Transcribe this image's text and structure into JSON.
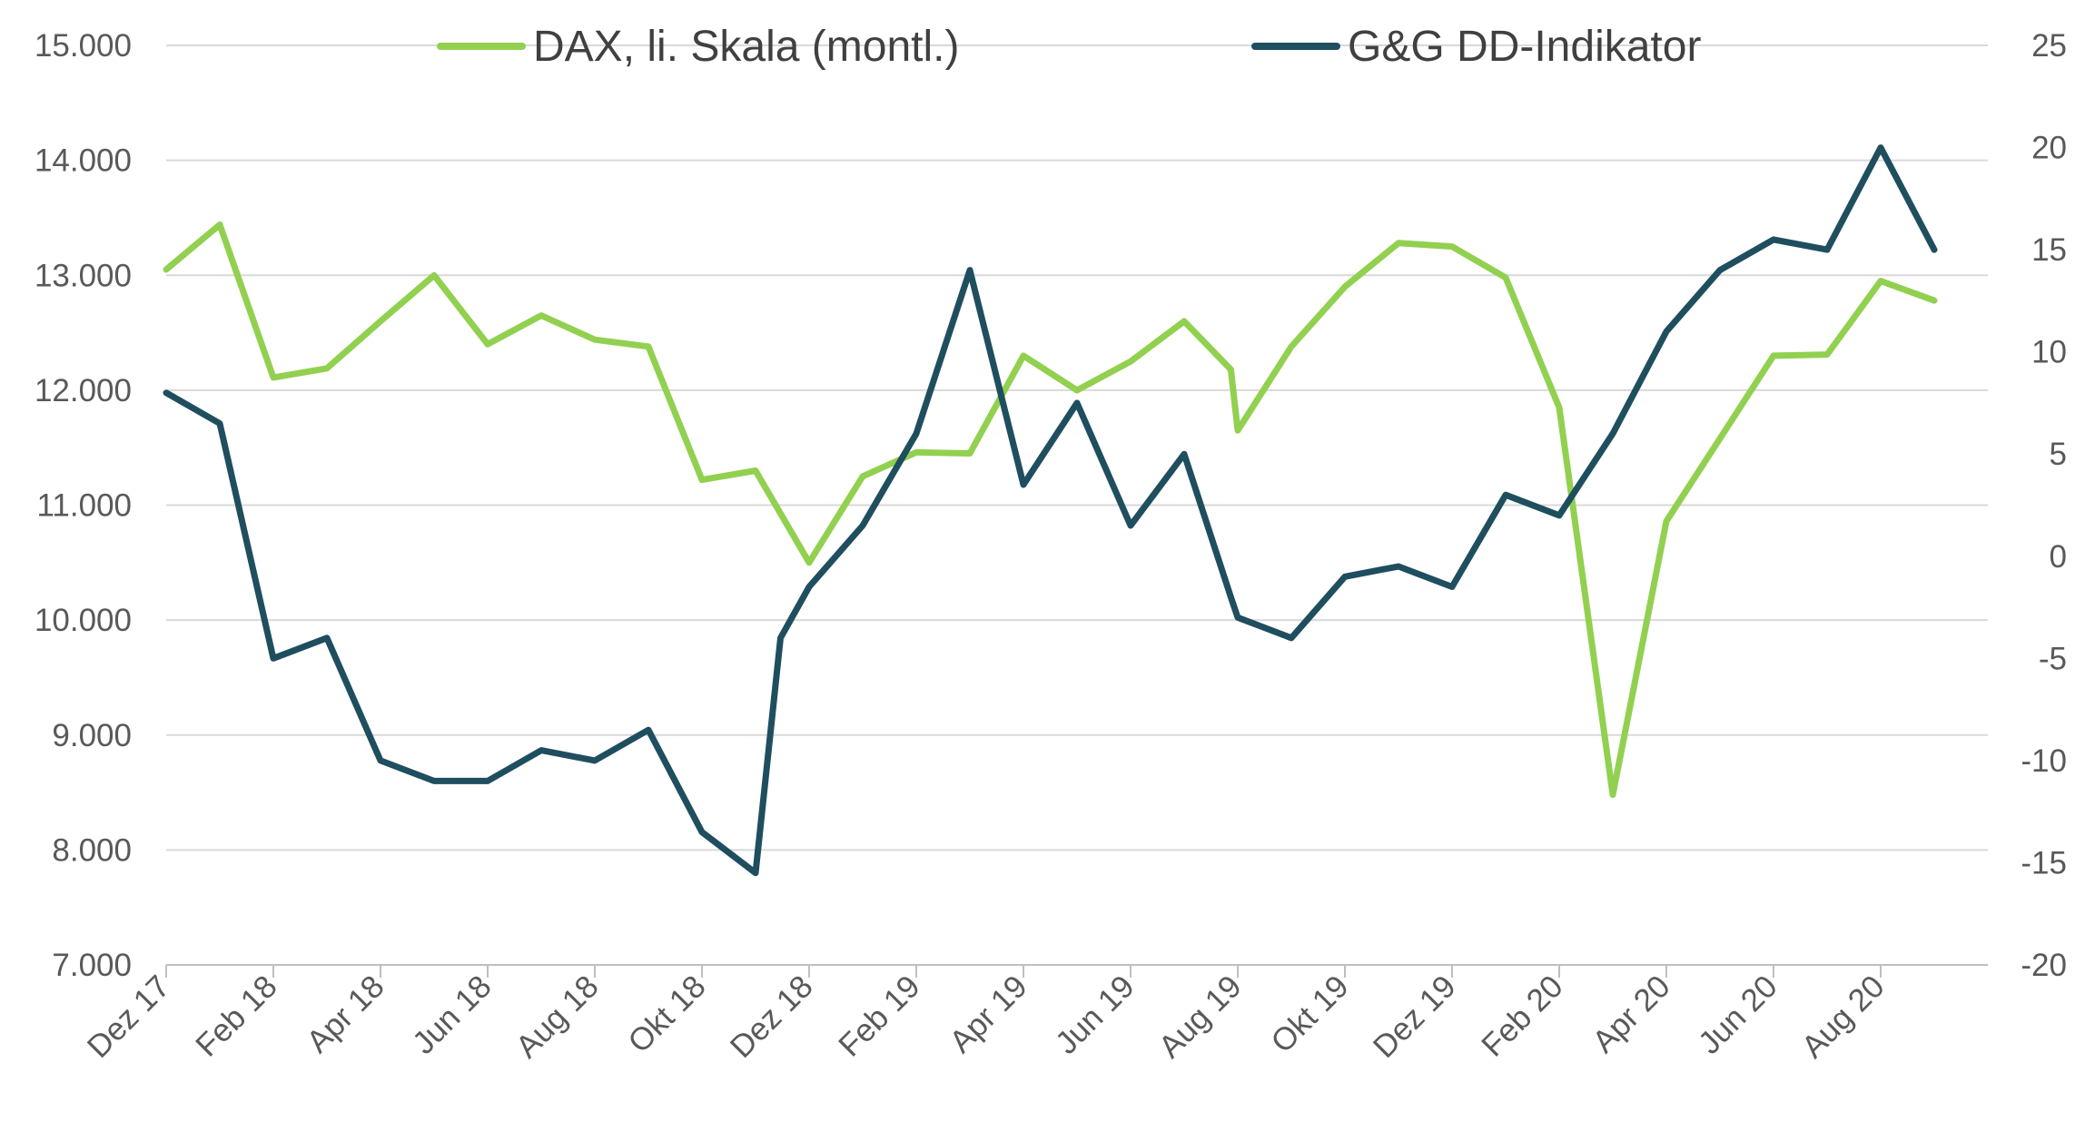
{
  "chart_data": {
    "type": "line",
    "title": "",
    "xlabel": "",
    "ylabel_left": "",
    "ylabel_right": "",
    "left_axis": {
      "ylim": [
        7000,
        15000
      ],
      "ticks": [
        7000,
        8000,
        9000,
        10000,
        11000,
        12000,
        13000,
        14000,
        15000
      ],
      "tick_labels": [
        "7.000",
        "8.000",
        "9.000",
        "10.000",
        "11.000",
        "12.000",
        "13.000",
        "14.000",
        "15.000"
      ]
    },
    "right_axis": {
      "ylim": [
        -20,
        25
      ],
      "ticks": [
        -20,
        -15,
        -10,
        -5,
        0,
        5,
        10,
        15,
        20,
        25
      ],
      "tick_labels": [
        "-20",
        "-15",
        "-10",
        "-5",
        "0",
        "5",
        "10",
        "15",
        "20",
        "25"
      ]
    },
    "x_axis": {
      "range": [
        "2017-12",
        "2020-10"
      ],
      "tick_months": [
        "2017-12",
        "2018-02",
        "2018-04",
        "2018-06",
        "2018-08",
        "2018-10",
        "2018-12",
        "2019-02",
        "2019-04",
        "2019-06",
        "2019-08",
        "2019-10",
        "2019-12",
        "2020-02",
        "2020-04",
        "2020-06",
        "2020-08"
      ],
      "tick_labels": [
        "Dez 17",
        "Feb 18",
        "Apr 18",
        "Jun 18",
        "Aug 18",
        "Okt 18",
        "Dez 18",
        "Feb 19",
        "Apr 19",
        "Jun 19",
        "Aug 19",
        "Okt 19",
        "Dez 19",
        "Feb 20",
        "Apr 20",
        "Jun 20",
        "Aug 20"
      ]
    },
    "grid": "horizontal",
    "legend_position": "top",
    "series": [
      {
        "name": "DAX, li. Skala (montl.)",
        "axis": "left",
        "color": "#92d050",
        "points": [
          [
            "2017-12",
            13050
          ],
          [
            "2018-01",
            13440
          ],
          [
            "2018-02",
            12110
          ],
          [
            "2018-03",
            12190
          ],
          [
            "2018-04",
            12600
          ],
          [
            "2018-05",
            13000
          ],
          [
            "2018-06",
            12400
          ],
          [
            "2018-07",
            12650
          ],
          [
            "2018-08",
            12440
          ],
          [
            "2018-09",
            12380
          ],
          [
            "2018-10",
            11220
          ],
          [
            "2018-11",
            11300
          ],
          [
            "2018-12",
            10500
          ],
          [
            "2019-01",
            11250
          ],
          [
            "2019-02",
            11460
          ],
          [
            "2019-03",
            11450
          ],
          [
            "2019-04",
            12300
          ],
          [
            "2019-05",
            12000
          ],
          [
            "2019-06",
            12250
          ],
          [
            "2019-07",
            12600
          ],
          [
            "2019-07-28",
            12180
          ],
          [
            "2019-08-01",
            11650
          ],
          [
            "2019-09",
            12380
          ],
          [
            "2019-10",
            12900
          ],
          [
            "2019-11",
            13280
          ],
          [
            "2019-12",
            13250
          ],
          [
            "2020-01",
            12980
          ],
          [
            "2020-02",
            11850
          ],
          [
            "2020-03",
            8480
          ],
          [
            "2020-04",
            10860
          ],
          [
            "2020-05",
            11580
          ],
          [
            "2020-06",
            12300
          ],
          [
            "2020-07",
            12310
          ],
          [
            "2020-08",
            12950
          ],
          [
            "2020-09",
            12780
          ]
        ]
      },
      {
        "name": "G&G DD-Indikator",
        "axis": "right",
        "color": "#1f4e5f",
        "points": [
          [
            "2017-12",
            8
          ],
          [
            "2018-01",
            6.5
          ],
          [
            "2018-02",
            -5
          ],
          [
            "2018-03",
            -4
          ],
          [
            "2018-04",
            -10
          ],
          [
            "2018-05",
            -11
          ],
          [
            "2018-06",
            -11
          ],
          [
            "2018-07",
            -9.5
          ],
          [
            "2018-08",
            -10
          ],
          [
            "2018-09",
            -8.5
          ],
          [
            "2018-10",
            -13.5
          ],
          [
            "2018-11",
            -15.5
          ],
          [
            "2018-11-15",
            -4
          ],
          [
            "2018-12",
            -1.5
          ],
          [
            "2019-01",
            1.5
          ],
          [
            "2019-02",
            6
          ],
          [
            "2019-03",
            14
          ],
          [
            "2019-04",
            3.5
          ],
          [
            "2019-05",
            7.5
          ],
          [
            "2019-06",
            1.5
          ],
          [
            "2019-07",
            5
          ],
          [
            "2019-07-28",
            -2
          ],
          [
            "2019-08-01",
            -3
          ],
          [
            "2019-09",
            -4
          ],
          [
            "2019-10",
            -1
          ],
          [
            "2019-11",
            -0.5
          ],
          [
            "2019-12",
            -1.5
          ],
          [
            "2020-01",
            3
          ],
          [
            "2020-02",
            2
          ],
          [
            "2020-03",
            6
          ],
          [
            "2020-04",
            11
          ],
          [
            "2020-05",
            14
          ],
          [
            "2020-06",
            15.5
          ],
          [
            "2020-07",
            15
          ],
          [
            "2020-08",
            20
          ],
          [
            "2020-09",
            15
          ]
        ]
      }
    ]
  }
}
